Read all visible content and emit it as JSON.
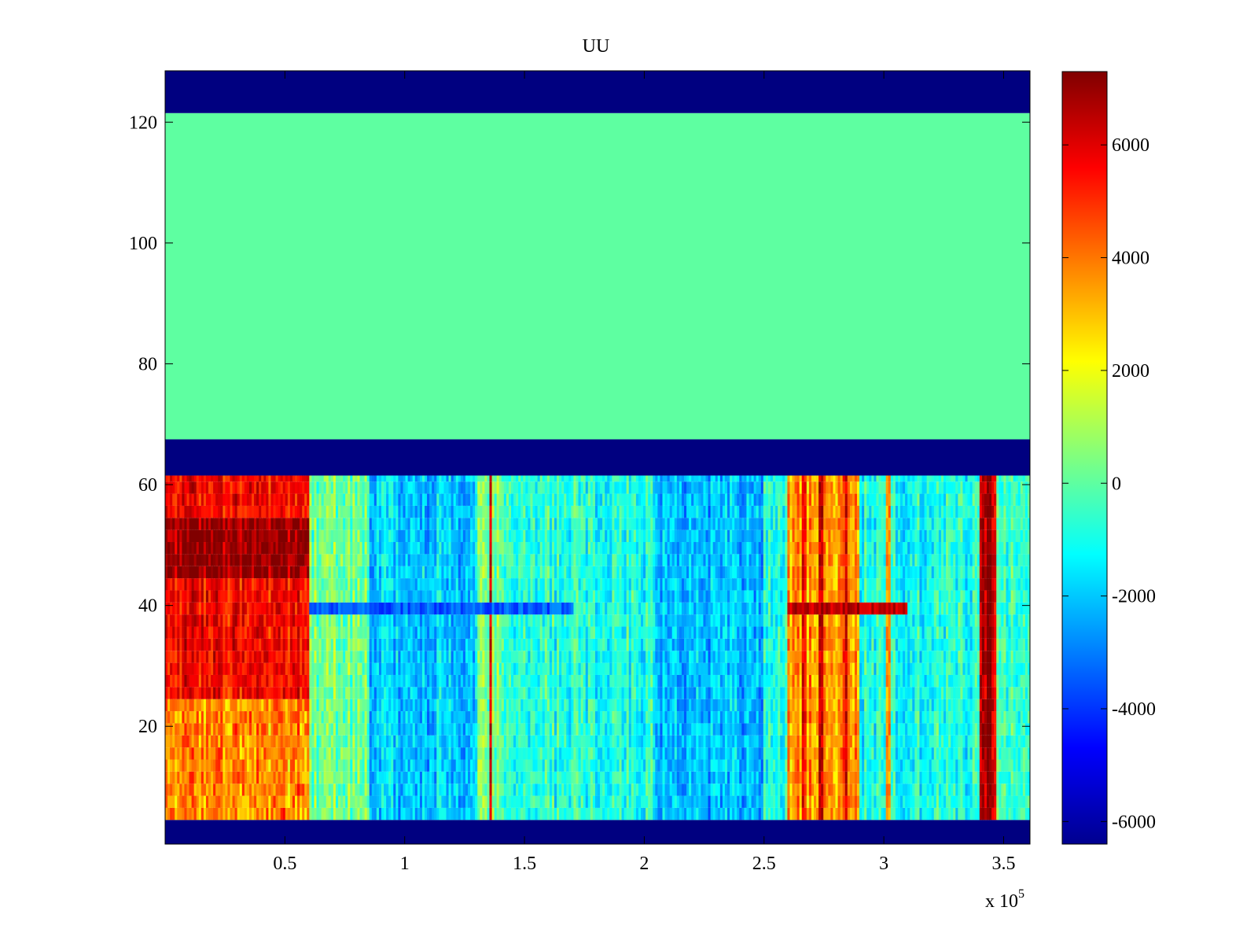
{
  "chart_data": {
    "type": "heatmap",
    "title": "UU",
    "xlabel": "",
    "ylabel": "",
    "colormap": "jet",
    "x_exponent_label": "x 10",
    "x_exponent": "5",
    "xlim": [
      0,
      3.61
    ],
    "ylim": [
      0.5,
      128.5
    ],
    "x_ticks": [
      0.5,
      1,
      1.5,
      2,
      2.5,
      3,
      3.5
    ],
    "x_tick_labels": [
      "0.5",
      "1",
      "1.5",
      "2",
      "2.5",
      "3",
      "3.5"
    ],
    "y_ticks": [
      20,
      40,
      60,
      80,
      100,
      120
    ],
    "y_tick_labels": [
      "20",
      "40",
      "60",
      "80",
      "100",
      "120"
    ],
    "clim": [
      -6400,
      7300
    ],
    "colorbar_ticks": [
      6000,
      4000,
      2000,
      0,
      -2000,
      -4000,
      -6000
    ],
    "colorbar_tick_labels": [
      "6000",
      "4000",
      "2000",
      "0",
      "-2000",
      "-4000",
      "-6000"
    ],
    "colors": {
      "missing_band": "#00008f",
      "zero": "#66ff99"
    },
    "row_bands": [
      {
        "rows": [
          1,
          4
        ],
        "value": -6400
      },
      {
        "rows": [
          5,
          61
        ],
        "value": "varying"
      },
      {
        "rows": [
          62,
          67
        ],
        "value": -6400
      },
      {
        "rows": [
          68,
          121
        ],
        "value": 0
      },
      {
        "rows": [
          122,
          128
        ],
        "value": -6400
      }
    ],
    "column_profile": [
      {
        "x_range": [
          0,
          0.6
        ],
        "value": 5500
      },
      {
        "x_range": [
          0.6,
          0.85
        ],
        "value": 200
      },
      {
        "x_range": [
          0.85,
          1.3
        ],
        "value": -1900
      },
      {
        "x_range": [
          1.3,
          1.4
        ],
        "value": 500
      },
      {
        "x_range": [
          1.4,
          2.05
        ],
        "value": -800
      },
      {
        "x_range": [
          2.05,
          2.5
        ],
        "value": -2200
      },
      {
        "x_range": [
          2.5,
          2.6
        ],
        "value": -600
      },
      {
        "x_range": [
          2.6,
          2.9
        ],
        "value": 3500
      },
      {
        "x_range": [
          2.9,
          3.4
        ],
        "value": -900
      },
      {
        "x_range": [
          3.4,
          3.47
        ],
        "value": 6000
      },
      {
        "x_range": [
          3.47,
          3.61
        ],
        "value": -400
      }
    ],
    "spike_columns": [
      {
        "x": 1.36,
        "value": 5500
      },
      {
        "x": 2.67,
        "value": 5500
      },
      {
        "x": 2.74,
        "value": 6500
      },
      {
        "x": 2.84,
        "value": 5500
      },
      {
        "x": 3.02,
        "value": 3000
      },
      {
        "x": 3.42,
        "value": 6500
      },
      {
        "x": 3.44,
        "value": 7000
      }
    ],
    "row_40_stripe": [
      {
        "x_range": [
          0.6,
          1.7
        ],
        "value": -3500
      },
      {
        "x_range": [
          2.6,
          3.1
        ],
        "value": 6500
      }
    ]
  }
}
